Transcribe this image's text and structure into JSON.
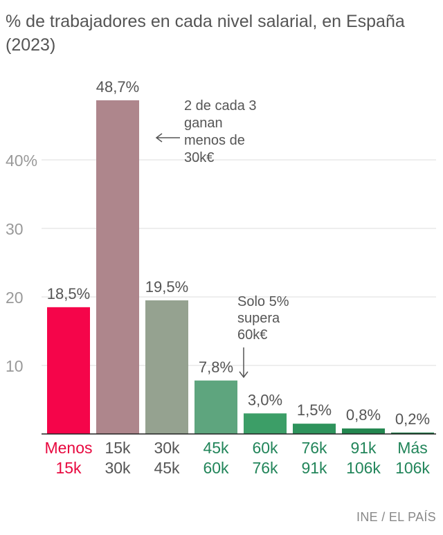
{
  "chart_data": {
    "type": "bar",
    "title": "% de trabajadores en cada nivel salarial, en España (2023)",
    "categories": [
      [
        "Menos",
        "15k"
      ],
      [
        "15k",
        "30k"
      ],
      [
        "30k",
        "45k"
      ],
      [
        "45k",
        "60k"
      ],
      [
        "60k",
        "76k"
      ],
      [
        "76k",
        "91k"
      ],
      [
        "91k",
        "106k"
      ],
      [
        "Más",
        "106k"
      ]
    ],
    "values": [
      18.5,
      48.7,
      19.5,
      7.8,
      3.0,
      1.5,
      0.8,
      0.2
    ],
    "value_labels": [
      "18,5%",
      "48,7%",
      "19,5%",
      "7,8%",
      "3,0%",
      "1,5%",
      "0,8%",
      "0,2%"
    ],
    "y_ticks": [
      10,
      20,
      30,
      40
    ],
    "y_tick_labels": [
      "10",
      "20",
      "30",
      "40%"
    ],
    "ylim": [
      0,
      50
    ],
    "grid": true,
    "bar_colors": [
      "#f5054a",
      "#ae868c",
      "#95a290",
      "#5ea57e",
      "#3c9e67",
      "#2e935c",
      "#23864f",
      "#1b7845"
    ],
    "label_colors": [
      "#e8083f",
      "#555555",
      "#555555",
      "#22855a",
      "#22855a",
      "#22855a",
      "#22855a",
      "#22855a"
    ],
    "annotations": [
      {
        "text": [
          "2 de cada 3",
          "ganan",
          "menos de",
          "30k€"
        ],
        "arrow": "left",
        "target_index": 1
      },
      {
        "text": [
          "Solo 5%",
          "supera",
          "60k€"
        ],
        "arrow": "down",
        "target_index": 3
      }
    ],
    "source": "INE / EL PAÍS"
  }
}
